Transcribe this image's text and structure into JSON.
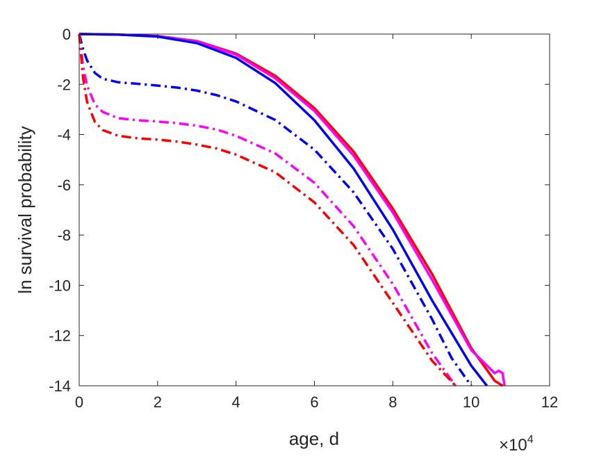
{
  "chart_data": {
    "type": "line",
    "xlabel": "age, d",
    "ylabel": "ln survival probability",
    "x_multiplier": "×10",
    "x_multiplier_exp": "4",
    "xlim": [
      0,
      120000
    ],
    "ylim": [
      -14,
      0
    ],
    "xticks": [
      0,
      20000,
      40000,
      60000,
      80000,
      100000,
      120000
    ],
    "xtick_labels": [
      "0",
      "2",
      "4",
      "6",
      "8",
      "10",
      "12"
    ],
    "yticks": [
      0,
      -2,
      -4,
      -6,
      -8,
      -10,
      -12,
      -14
    ],
    "ytick_labels": [
      "0",
      "-2",
      "-4",
      "-6",
      "-8",
      "-10",
      "-12",
      "-14"
    ],
    "grid": false,
    "series": [
      {
        "color": "#ff0000",
        "style": "solid",
        "x": [
          0,
          10000,
          20000,
          30000,
          40000,
          50000,
          60000,
          70000,
          80000,
          90000,
          100000,
          106000,
          108000
        ],
        "y": [
          0,
          -0.02,
          -0.08,
          -0.28,
          -0.78,
          -1.66,
          -2.95,
          -4.68,
          -6.95,
          -9.55,
          -12.5,
          -13.8,
          -14
        ]
      },
      {
        "color": "#ff00ff",
        "style": "solid",
        "x": [
          0,
          10000,
          20000,
          30000,
          40000,
          50000,
          60000,
          70000,
          80000,
          90000,
          100000,
          106000,
          107000,
          108000,
          108500
        ],
        "y": [
          0,
          -0.02,
          -0.09,
          -0.3,
          -0.82,
          -1.76,
          -3.06,
          -4.84,
          -7.1,
          -9.78,
          -12.58,
          -13.5,
          -13.4,
          -13.5,
          -14
        ]
      },
      {
        "color": "#0000ff",
        "style": "solid",
        "x": [
          0,
          10000,
          20000,
          30000,
          40000,
          50000,
          60000,
          70000,
          80000,
          90000,
          100000,
          104000
        ],
        "y": [
          0,
          -0.02,
          -0.1,
          -0.36,
          -0.95,
          -1.95,
          -3.43,
          -5.35,
          -7.78,
          -10.6,
          -13.2,
          -14
        ]
      },
      {
        "color": "#0000ff",
        "style": "dashdot",
        "x": [
          0,
          1000,
          2000,
          4000,
          6000,
          10000,
          15000,
          20000,
          25000,
          30000,
          35000,
          40000,
          50000,
          60000,
          70000,
          80000,
          90000,
          95000,
          100000
        ],
        "y": [
          0,
          -0.6,
          -1.05,
          -1.55,
          -1.78,
          -1.92,
          -1.98,
          -2.05,
          -2.13,
          -2.25,
          -2.43,
          -2.68,
          -3.42,
          -4.6,
          -6.3,
          -8.55,
          -11.35,
          -12.9,
          -14
        ]
      },
      {
        "color": "#ff00ff",
        "style": "dashdot",
        "x": [
          0,
          1000,
          2000,
          4000,
          6000,
          10000,
          15000,
          20000,
          25000,
          30000,
          35000,
          40000,
          50000,
          60000,
          70000,
          80000,
          90000,
          96000
        ],
        "y": [
          0,
          -1.3,
          -2.05,
          -2.8,
          -3.1,
          -3.35,
          -3.43,
          -3.48,
          -3.55,
          -3.65,
          -3.8,
          -4.05,
          -4.75,
          -5.92,
          -7.65,
          -9.95,
          -12.7,
          -14
        ]
      },
      {
        "color": "#ff0000",
        "style": "dashdot",
        "x": [
          0,
          1000,
          2000,
          4000,
          6000,
          10000,
          15000,
          20000,
          25000,
          30000,
          35000,
          40000,
          50000,
          60000,
          70000,
          80000,
          90000,
          96000
        ],
        "y": [
          0,
          -1.75,
          -2.7,
          -3.5,
          -3.82,
          -4.05,
          -4.15,
          -4.2,
          -4.28,
          -4.4,
          -4.55,
          -4.8,
          -5.5,
          -6.7,
          -8.4,
          -10.7,
          -13.0,
          -14
        ]
      }
    ]
  }
}
